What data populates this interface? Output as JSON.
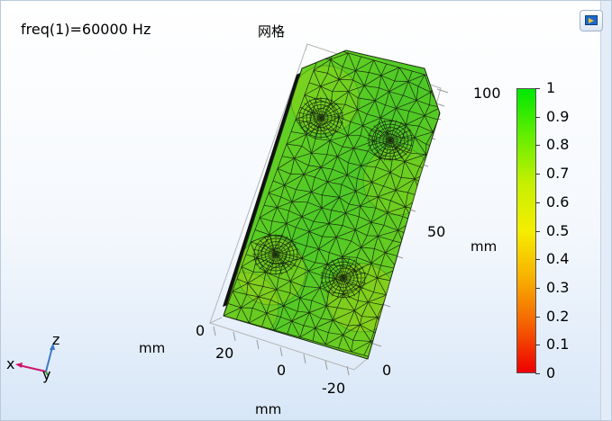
{
  "plot": {
    "title": "freq(1)=60000 Hz",
    "subtitle": "网格"
  },
  "axes": {
    "z_ticks": [
      "100",
      "50",
      "0"
    ],
    "y_ticks": [
      "20",
      "0",
      "-20"
    ],
    "x_ticks": [
      "0"
    ],
    "z_unit": "mm",
    "y_unit": "mm",
    "x_unit": "mm"
  },
  "colorbar": {
    "ticks": [
      "1",
      "0.9",
      "0.8",
      "0.7",
      "0.6",
      "0.5",
      "0.4",
      "0.3",
      "0.2",
      "0.1",
      "0"
    ],
    "colors": [
      "#00e800",
      "#66ee00",
      "#c6f000",
      "#f5ee00",
      "#f8b000",
      "#f56000",
      "#ee0000"
    ]
  },
  "triad": {
    "x": "x",
    "y": "y",
    "z": "z"
  },
  "mesh": {
    "fill_color": "#5fcf22",
    "edge_color": "#1a2a10",
    "side_color": "#101010"
  },
  "toolbar": {
    "export_icon": "image-export-icon"
  }
}
